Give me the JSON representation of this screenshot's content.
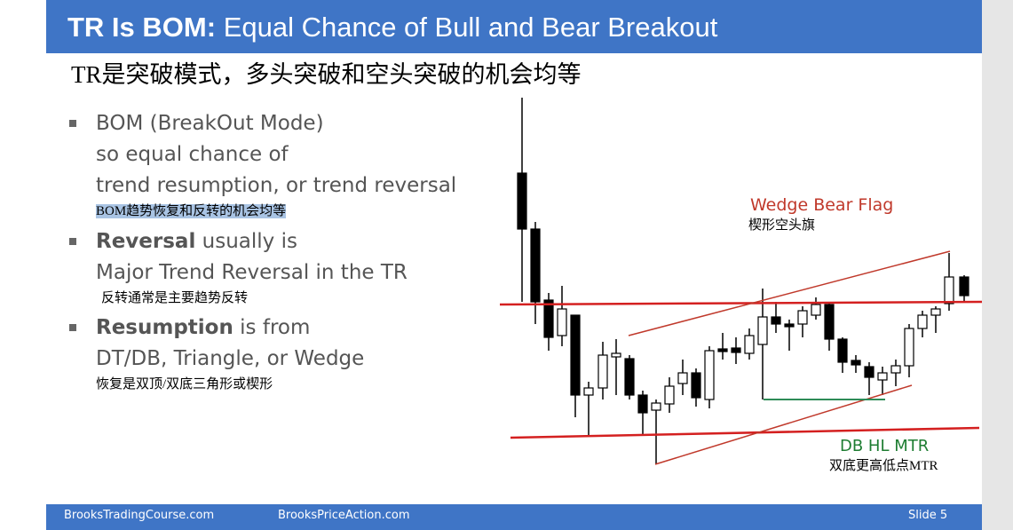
{
  "header": {
    "title_bold": "TR Is BOM:",
    "title": "Equal Chance of Bull and Bear Breakout",
    "subtitle": "TR是突破模式，多头突破和空头突破的机会均等"
  },
  "bullets": [
    {
      "lines": [
        "BOM (BreakOut Mode)",
        "so equal chance of",
        "trend resumption, or trend reversal"
      ],
      "note": "BOM趋势恢复和反转的机会均等"
    },
    {
      "bold": "Reversal",
      "text": "usually is",
      "lines": [
        "Major Trend Reversal in the TR"
      ],
      "note": "反转通常是主要趋势反转"
    },
    {
      "bold": "Resumption",
      "text": "is from",
      "lines": [
        "DT/DB, Triangle, or Wedge"
      ],
      "note": "恢复是双顶/双底三角形或楔形"
    }
  ],
  "chart": {
    "wedge_label": "Wedge Bear Flag",
    "wedge_note": "楔形空头旗",
    "db_label": "DB HL MTR",
    "db_note": "双底更高低点MTR"
  },
  "footer": {
    "left": "BrooksTradingCourse.com",
    "middle": "BrooksPriceAction.com",
    "right": "Slide 5"
  }
}
